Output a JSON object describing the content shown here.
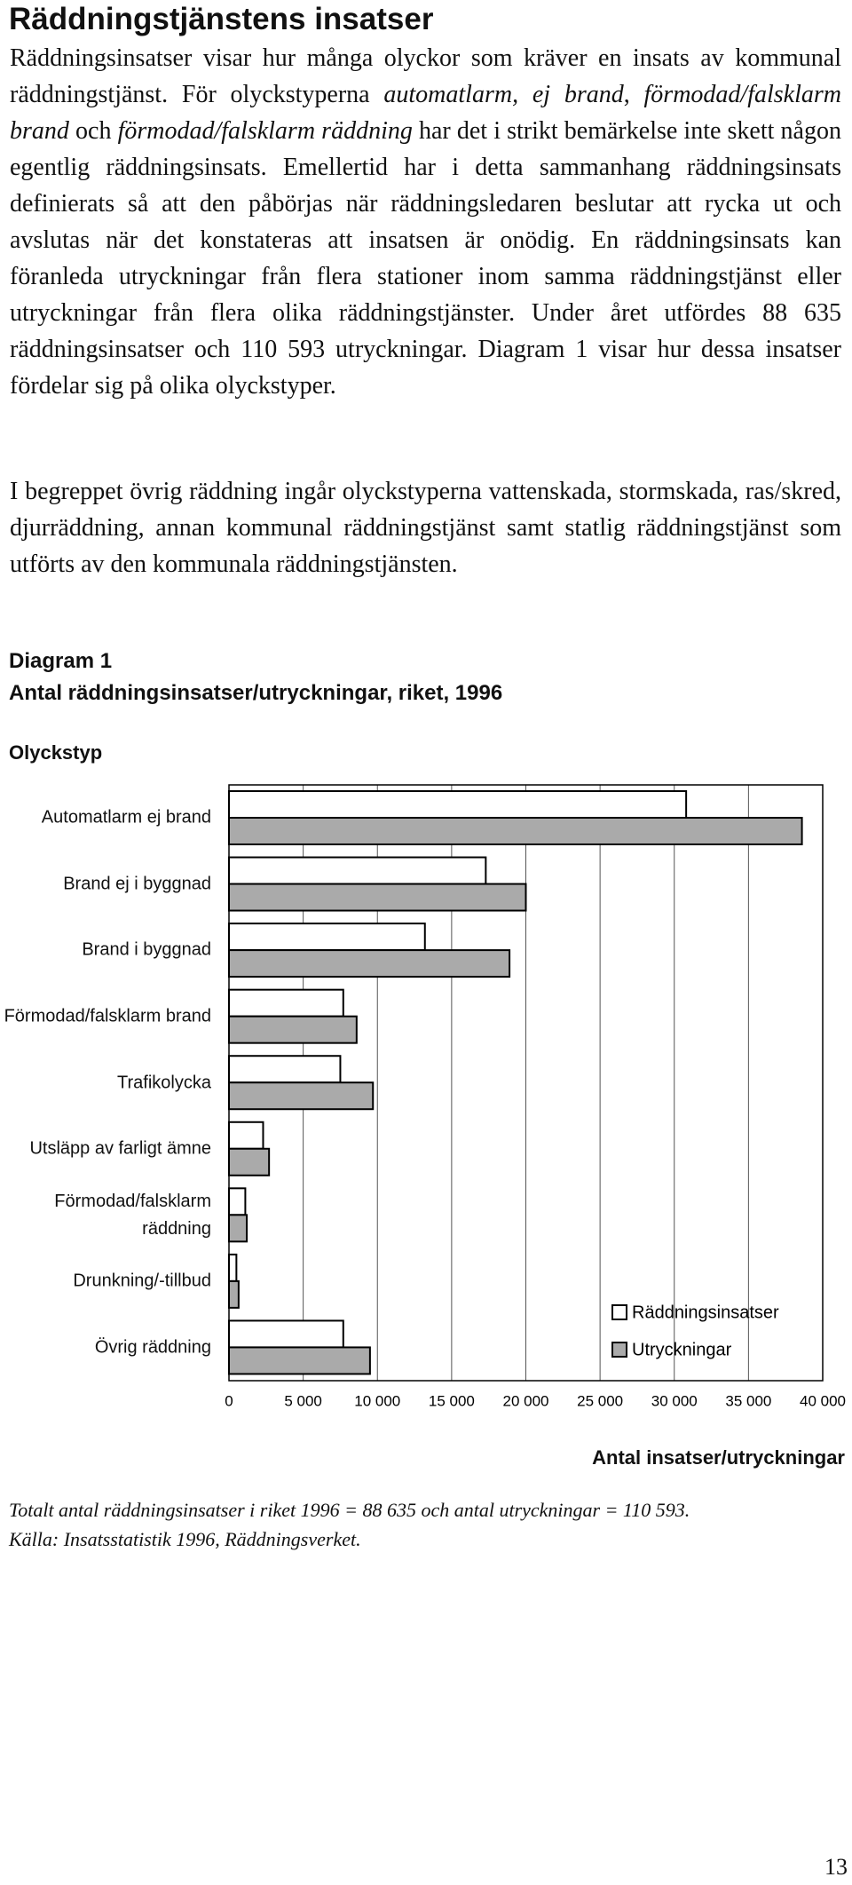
{
  "header": {
    "title": "Räddningstjänstens insatser"
  },
  "paragraphs": [
    [
      "Räddningsinsatser visar hur många olyckor som kräver en insats av kommunal räddningstjänst. För olyckstyperna ",
      "automatlarm, ej brand",
      ", ",
      "förmodad/falsklarm brand",
      " och ",
      "förmodad/falsklarm räddning",
      " har det i strikt bemärkelse inte skett någon egentlig räddningsinsats. Emellertid har i detta sammanhang räddningsinsats definierats så att den påbörjas när räddningsledaren beslutar att rycka ut och avslutas när det konstateras att insatsen är onödig. En räddningsinsats kan föranleda utryckningar från flera stationer inom samma räddningstjänst eller utryckningar från flera olika räddningstjänster. Under året utfördes 88 635 räddningsinsatser och 110 593 utryckningar. Diagram 1 visar hur dessa insatser fördelar sig på olika olyckstyper."
    ],
    [
      "I begreppet övrig räddning ingår olyckstyperna vattenskada, stormskada, ras/skred, djurräddning, annan kommunal räddningstjänst samt statlig räddningstjänst som utförts av den kommunala räddningstjänsten."
    ]
  ],
  "chart_data": {
    "type": "bar",
    "orientation": "horizontal",
    "label": "Diagram 1",
    "title": "Antal räddningsinsatser/utryckningar, riket, 1996",
    "y_label": "Olyckstyp",
    "x_label": "Antal insatser/utryckningar",
    "categories": [
      "Automatlarm ej brand",
      "Brand ej i byggnad",
      "Brand i byggnad",
      "Förmodad/falsklarm brand",
      "Trafikolycka",
      "Utsläpp av farligt ämne",
      "Förmodad/falsklarm räddning",
      "Drunkning/-tillbud",
      "Övrig räddning"
    ],
    "series": [
      {
        "name": "Räddningsinsatser",
        "color": "#ffffff",
        "values": [
          30800,
          17300,
          13200,
          7700,
          7500,
          2300,
          1100,
          500,
          7700
        ]
      },
      {
        "name": "Utryckningar",
        "color": "#aaaaaa",
        "values": [
          38600,
          20000,
          18900,
          8600,
          9700,
          2700,
          1200,
          650,
          9500
        ]
      }
    ],
    "xlim": [
      0,
      40000
    ],
    "xticks": [
      0,
      {
        "value": 5000,
        "label": "5 000"
      },
      {
        "value": 10000,
        "label": "10 000"
      },
      {
        "value": 15000,
        "label": "15 000"
      },
      {
        "value": 20000,
        "label": "20 000"
      },
      {
        "value": 25000,
        "label": "25 000"
      },
      {
        "value": 30000,
        "label": "30 000"
      },
      {
        "value": 35000,
        "label": "35 000"
      },
      {
        "value": 40000,
        "label": "40 000"
      }
    ],
    "grid": true,
    "legend": "lower right"
  },
  "footnotes": [
    "Totalt antal räddningsinsatser i riket 1996 = 88 635 och antal utryckningar = 110 593.",
    "Källa: Insatsstatistik 1996, Räddningsverket."
  ],
  "page_number": "13"
}
